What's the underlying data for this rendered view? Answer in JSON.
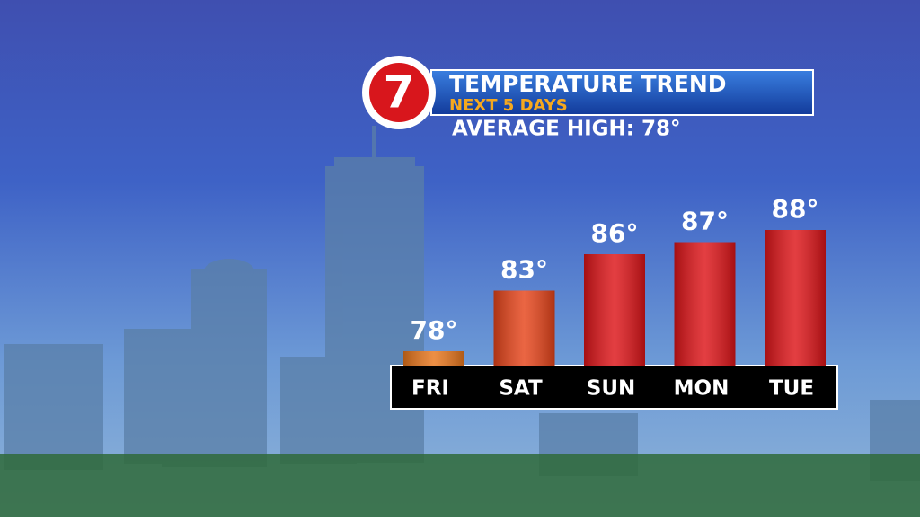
{
  "logo": "7",
  "chart_data": {
    "type": "bar",
    "title": "TEMPERATURE TREND",
    "subtitle": "NEXT 5 DAYS",
    "annotation": "AVERAGE HIGH: 78°",
    "categories": [
      "FRI",
      "SAT",
      "SUN",
      "MON",
      "TUE"
    ],
    "values": [
      78,
      83,
      86,
      87,
      88
    ],
    "value_labels": [
      "78°",
      "83°",
      "86°",
      "87°",
      "88°"
    ],
    "colors": [
      "#e8761c",
      "#e6441a",
      "#dd1418",
      "#dd1418",
      "#dd1418"
    ]
  }
}
